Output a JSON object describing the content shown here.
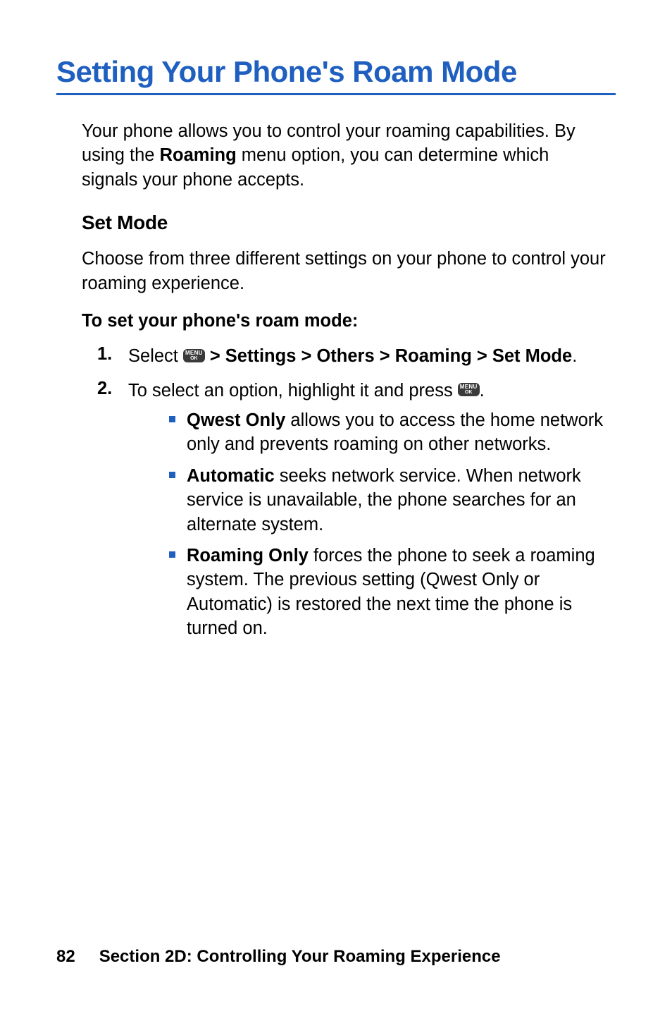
{
  "heading": "Setting Your Phone's Roam Mode",
  "intro_before": "Your phone allows you to control your roaming capabilities. By using the ",
  "intro_bold": "Roaming",
  "intro_after": " menu option, you can determine which signals your phone accepts.",
  "sub_heading": "Set Mode",
  "sub_para": "Choose from three different settings on your phone to control your roaming experience.",
  "instruction": "To set your phone's roam mode:",
  "steps": {
    "s1": {
      "num": "1.",
      "before": "Select ",
      "bold": " > Settings > Others > Roaming > Set Mode",
      "after": "."
    },
    "s2": {
      "num": "2.",
      "before": "To select an option, highlight it and press ",
      "after": "."
    }
  },
  "bullets": {
    "b1": {
      "bold": "Qwest Only",
      "rest": " allows you to access the home network only and prevents roaming on other networks."
    },
    "b2": {
      "bold": "Automatic",
      "rest": " seeks network service. When network service is unavailable, the phone searches for an alternate system."
    },
    "b3": {
      "bold": "Roaming Only",
      "rest": " forces the phone to seek a roaming system. The previous setting (Qwest Only or Automatic) is restored the next time the phone is turned on."
    }
  },
  "menu_icon": {
    "line1": "MENU",
    "line2": "OK"
  },
  "footer": {
    "page": "82",
    "section": "Section 2D: Controlling Your Roaming Experience"
  },
  "colors": {
    "accent": "#1f5fbf",
    "text": "#000000",
    "icon_bg": "#3a3a3a"
  }
}
